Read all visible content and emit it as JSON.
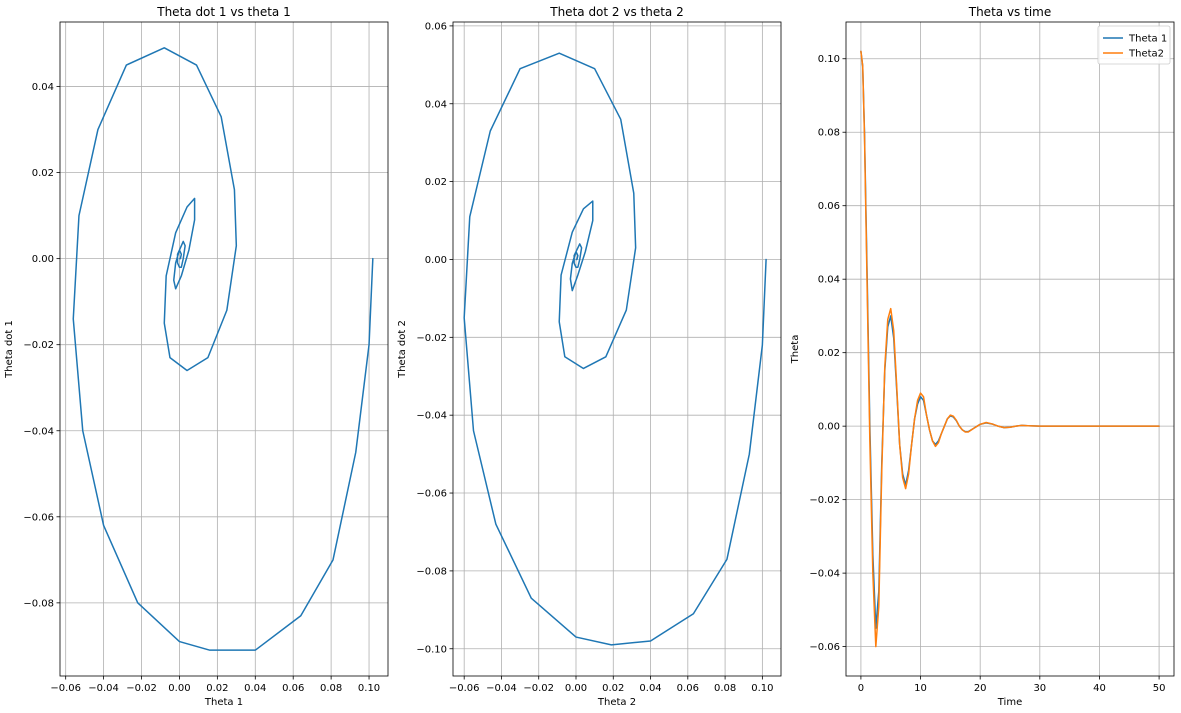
{
  "figure": {
    "background": "#ffffff",
    "grid_color": "#b0b0b0"
  },
  "chart_data": [
    {
      "type": "line",
      "title": "Theta dot 1 vs theta 1",
      "xlabel": "Theta 1",
      "ylabel": "Theta dot 1",
      "xlim": [
        -0.063,
        0.11
      ],
      "ylim": [
        -0.097,
        0.055
      ],
      "xticks": [
        -0.06,
        -0.04,
        -0.02,
        0.0,
        0.02,
        0.04,
        0.06,
        0.08,
        0.1
      ],
      "xtick_labels": [
        "−0.06",
        "−0.04",
        "−0.02",
        "0.00",
        "0.02",
        "0.04",
        "0.06",
        "0.08",
        "0.10"
      ],
      "yticks": [
        -0.08,
        -0.06,
        -0.04,
        -0.02,
        0.0,
        0.02,
        0.04
      ],
      "ytick_labels": [
        "−0.08",
        "−0.06",
        "−0.04",
        "−0.02",
        "0.00",
        "0.02",
        "0.04"
      ],
      "grid": true,
      "legend": null,
      "series": [
        {
          "color": "#1f77b4",
          "x": [
            0.102,
            0.1,
            0.093,
            0.081,
            0.064,
            0.04,
            0.016,
            0.0,
            -0.022,
            -0.04,
            -0.051,
            -0.056,
            -0.053,
            -0.043,
            -0.028,
            -0.008,
            0.009,
            0.022,
            0.029,
            0.03,
            0.025,
            0.015,
            0.004,
            -0.005,
            -0.008,
            -0.007,
            -0.002,
            0.004,
            0.008,
            0.008,
            0.005,
            0.001,
            -0.002,
            -0.003,
            -0.002,
            0.0,
            0.002,
            0.003,
            0.002,
            0.001,
            0.0,
            -0.001,
            -0.001,
            0.0,
            0.001,
            0.0005,
            0.0002
          ],
          "y": [
            0.0,
            -0.02,
            -0.045,
            -0.07,
            -0.083,
            -0.091,
            -0.091,
            -0.089,
            -0.08,
            -0.062,
            -0.04,
            -0.014,
            0.01,
            0.03,
            0.045,
            0.049,
            0.045,
            0.033,
            0.016,
            0.003,
            -0.012,
            -0.023,
            -0.026,
            -0.023,
            -0.015,
            -0.004,
            0.006,
            0.012,
            0.014,
            0.009,
            0.002,
            -0.004,
            -0.007,
            -0.005,
            -0.001,
            0.002,
            0.004,
            0.003,
            0.0,
            -0.002,
            -0.002,
            -0.001,
            0.001,
            0.002,
            0.001,
            0.0,
            0.0
          ]
        }
      ]
    },
    {
      "type": "line",
      "title": "Theta dot 2 vs theta 2",
      "xlabel": "Theta 2",
      "ylabel": "Theta dot 2",
      "xlim": [
        -0.066,
        0.11
      ],
      "ylim": [
        -0.107,
        0.061
      ],
      "xticks": [
        -0.06,
        -0.04,
        -0.02,
        0.0,
        0.02,
        0.04,
        0.06,
        0.08,
        0.1
      ],
      "xtick_labels": [
        "−0.06",
        "−0.04",
        "−0.02",
        "0.00",
        "0.02",
        "0.04",
        "0.06",
        "0.08",
        "0.10"
      ],
      "yticks": [
        -0.1,
        -0.08,
        -0.06,
        -0.04,
        -0.02,
        0.0,
        0.02,
        0.04,
        0.06
      ],
      "ytick_labels": [
        "−0.10",
        "−0.08",
        "−0.06",
        "−0.04",
        "−0.02",
        "0.00",
        "0.02",
        "0.04",
        "0.06"
      ],
      "grid": true,
      "legend": null,
      "series": [
        {
          "color": "#1f77b4",
          "x": [
            0.102,
            0.1,
            0.093,
            0.081,
            0.063,
            0.04,
            0.019,
            0.0,
            -0.024,
            -0.043,
            -0.055,
            -0.06,
            -0.057,
            -0.046,
            -0.03,
            -0.009,
            0.01,
            0.024,
            0.031,
            0.032,
            0.027,
            0.016,
            0.004,
            -0.006,
            -0.009,
            -0.008,
            -0.002,
            0.004,
            0.009,
            0.009,
            0.005,
            0.001,
            -0.002,
            -0.003,
            -0.002,
            0.0,
            0.002,
            0.003,
            0.002,
            0.001,
            0.0,
            -0.001,
            -0.001,
            0.0,
            0.001,
            0.0005,
            0.0002
          ],
          "y": [
            0.0,
            -0.022,
            -0.05,
            -0.077,
            -0.091,
            -0.098,
            -0.099,
            -0.097,
            -0.087,
            -0.068,
            -0.044,
            -0.015,
            0.011,
            0.033,
            0.049,
            0.053,
            0.049,
            0.036,
            0.017,
            0.003,
            -0.013,
            -0.025,
            -0.028,
            -0.025,
            -0.016,
            -0.004,
            0.007,
            0.013,
            0.015,
            0.01,
            0.002,
            -0.004,
            -0.008,
            -0.005,
            -0.001,
            0.002,
            0.004,
            0.003,
            0.0,
            -0.002,
            -0.002,
            -0.001,
            0.001,
            0.002,
            0.001,
            0.0,
            0.0
          ]
        }
      ]
    },
    {
      "type": "line",
      "title": "Theta vs time",
      "xlabel": "Time",
      "ylabel": "Theta",
      "xlim": [
        -2.5,
        52.5
      ],
      "ylim": [
        -0.068,
        0.11
      ],
      "xticks": [
        0,
        10,
        20,
        30,
        40,
        50
      ],
      "xtick_labels": [
        "0",
        "10",
        "20",
        "30",
        "40",
        "50"
      ],
      "yticks": [
        -0.06,
        -0.04,
        -0.02,
        0.0,
        0.02,
        0.04,
        0.06,
        0.08,
        0.1
      ],
      "ytick_labels": [
        "−0.06",
        "−0.04",
        "−0.02",
        "0.00",
        "0.02",
        "0.04",
        "0.06",
        "0.08",
        "0.10"
      ],
      "grid": true,
      "legend": "top-right",
      "series": [
        {
          "name": "Theta 1",
          "color": "#1f77b4",
          "x": [
            0,
            0.3,
            0.6,
            1.0,
            1.5,
            2.0,
            2.5,
            3.0,
            3.5,
            4.0,
            4.5,
            5.0,
            5.5,
            6.0,
            6.5,
            7.0,
            7.5,
            8.0,
            8.5,
            9.0,
            9.5,
            10.0,
            10.5,
            11.0,
            11.5,
            12.0,
            12.5,
            13.0,
            13.5,
            14.0,
            14.5,
            15.0,
            15.5,
            16.0,
            16.5,
            17.0,
            17.5,
            18.0,
            19.0,
            20.0,
            21.0,
            22.0,
            23.0,
            24.0,
            25.0,
            26.0,
            27.0,
            28.0,
            30.0,
            32.0,
            35.0,
            40.0,
            45.0,
            50.0
          ],
          "y": [
            0.102,
            0.098,
            0.08,
            0.045,
            0.0,
            -0.035,
            -0.055,
            -0.045,
            -0.01,
            0.015,
            0.027,
            0.03,
            0.024,
            0.01,
            -0.005,
            -0.013,
            -0.016,
            -0.012,
            -0.005,
            0.002,
            0.006,
            0.008,
            0.007,
            0.003,
            -0.001,
            -0.004,
            -0.005,
            -0.004,
            -0.002,
            0.0,
            0.002,
            0.0028,
            0.0025,
            0.0015,
            0.0,
            -0.001,
            -0.0015,
            -0.0015,
            -0.0005,
            0.0005,
            0.0009,
            0.0006,
            0.0,
            -0.0004,
            -0.0003,
            0.0,
            0.0002,
            0.0001,
            0.0,
            0.0,
            0.0,
            0.0,
            0.0,
            0.0
          ]
        },
        {
          "name": "Theta2",
          "color": "#ff7f0e",
          "x": [
            0,
            0.3,
            0.6,
            1.0,
            1.5,
            2.0,
            2.5,
            3.0,
            3.5,
            4.0,
            4.5,
            5.0,
            5.5,
            6.0,
            6.5,
            7.0,
            7.5,
            8.0,
            8.5,
            9.0,
            9.5,
            10.0,
            10.5,
            11.0,
            11.5,
            12.0,
            12.5,
            13.0,
            13.5,
            14.0,
            14.5,
            15.0,
            15.5,
            16.0,
            16.5,
            17.0,
            17.5,
            18.0,
            19.0,
            20.0,
            21.0,
            22.0,
            23.0,
            24.0,
            25.0,
            26.0,
            27.0,
            28.0,
            30.0,
            32.0,
            35.0,
            40.0,
            45.0,
            50.0
          ],
          "y": [
            0.102,
            0.098,
            0.079,
            0.042,
            -0.004,
            -0.04,
            -0.06,
            -0.049,
            -0.012,
            0.016,
            0.029,
            0.032,
            0.026,
            0.011,
            -0.005,
            -0.014,
            -0.017,
            -0.013,
            -0.005,
            0.002,
            0.007,
            0.009,
            0.008,
            0.003,
            -0.001,
            -0.004,
            -0.0055,
            -0.0045,
            -0.002,
            0.0,
            0.002,
            0.003,
            0.0027,
            0.0016,
            0.0,
            -0.001,
            -0.0016,
            -0.0016,
            -0.0005,
            0.0005,
            0.001,
            0.0006,
            0.0,
            -0.0004,
            -0.0003,
            0.0,
            0.0002,
            0.0001,
            0.0,
            0.0,
            0.0,
            0.0,
            0.0,
            0.0
          ]
        }
      ]
    }
  ]
}
